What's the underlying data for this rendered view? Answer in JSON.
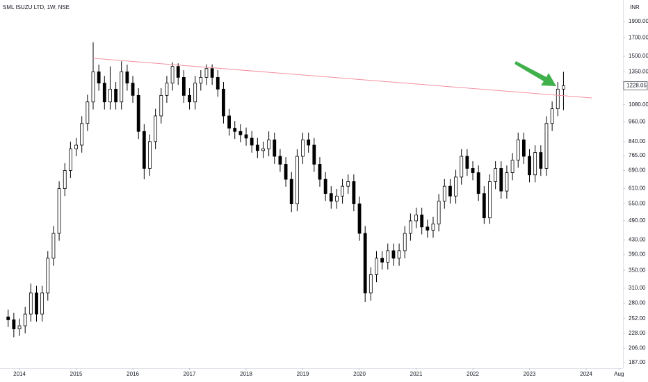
{
  "chart_data": {
    "type": "candlestick",
    "title": "SML ISUZU LTD, 1W, NSE",
    "currency": "INR",
    "log_scale": true,
    "up_color": "#ffffff",
    "down_color": "#000000",
    "wick_color": "#000000",
    "trendline_color": "#f48fa0",
    "xlim": [
      2013.656,
      2024.65
    ],
    "ylim": [
      180,
      2200
    ],
    "xticks": [
      2014,
      2015,
      2016,
      2017,
      2018,
      2019,
      2020,
      2021,
      2022,
      2023,
      2024,
      {
        "value": 2024.58,
        "label": "Aug"
      }
    ],
    "yticks": [
      {
        "value": 1900,
        "label": "1900.00"
      },
      {
        "value": 1700,
        "label": "1700.00"
      },
      {
        "value": 1500,
        "label": "1500.00"
      },
      {
        "value": 1350,
        "label": "1350.00"
      },
      {
        "value": 1080,
        "label": "1080.00"
      },
      {
        "value": 960,
        "label": "960.00"
      },
      {
        "value": 840,
        "label": "840.00"
      },
      {
        "value": 765,
        "label": "765.00"
      },
      {
        "value": 690,
        "label": "690.00"
      },
      {
        "value": 610,
        "label": "610.00"
      },
      {
        "value": 550,
        "label": "550.00"
      },
      {
        "value": 490,
        "label": "490.00"
      },
      {
        "value": 430,
        "label": "430.00"
      },
      {
        "value": 390,
        "label": "390.00"
      },
      {
        "value": 350,
        "label": "350.00"
      },
      {
        "value": 310,
        "label": "310.00"
      },
      {
        "value": 280,
        "label": "280.00"
      },
      {
        "value": 252,
        "label": "252.00"
      },
      {
        "value": 228,
        "label": "228.00"
      },
      {
        "value": 206,
        "label": "206.00"
      },
      {
        "value": 187,
        "label": "187.00"
      }
    ],
    "trendline": {
      "x": [
        2015.3,
        2024.1
      ],
      "y": [
        1480,
        1130
      ]
    },
    "x": [
      2013.8,
      2013.9,
      2014.0,
      2014.1,
      2014.2,
      2014.3,
      2014.4,
      2014.5,
      2014.6,
      2014.7,
      2014.8,
      2014.9,
      2015.0,
      2015.1,
      2015.2,
      2015.3,
      2015.4,
      2015.5,
      2015.6,
      2015.7,
      2015.8,
      2015.9,
      2016.0,
      2016.1,
      2016.2,
      2016.3,
      2016.4,
      2016.5,
      2016.6,
      2016.7,
      2016.8,
      2016.9,
      2017.0,
      2017.1,
      2017.2,
      2017.3,
      2017.4,
      2017.5,
      2017.6,
      2017.7,
      2017.8,
      2017.9,
      2018.0,
      2018.1,
      2018.2,
      2018.3,
      2018.4,
      2018.5,
      2018.6,
      2018.7,
      2018.8,
      2018.9,
      2019.0,
      2019.1,
      2019.2,
      2019.3,
      2019.4,
      2019.5,
      2019.6,
      2019.7,
      2019.8,
      2019.9,
      2020.0,
      2020.1,
      2020.2,
      2020.3,
      2020.4,
      2020.5,
      2020.6,
      2020.7,
      2020.8,
      2020.9,
      2021.0,
      2021.1,
      2021.2,
      2021.3,
      2021.4,
      2021.5,
      2021.6,
      2021.7,
      2021.8,
      2021.9,
      2022.0,
      2022.1,
      2022.2,
      2022.3,
      2022.4,
      2022.5,
      2022.6,
      2022.7,
      2022.8,
      2022.9,
      2023.0,
      2023.1,
      2023.2,
      2023.3,
      2023.4,
      2023.5,
      2023.6
    ],
    "open": [
      255,
      250,
      235,
      240,
      260,
      300,
      260,
      300,
      380,
      450,
      610,
      690,
      800,
      820,
      950,
      1100,
      1350,
      1250,
      1100,
      1200,
      1100,
      1350,
      1250,
      1150,
      900,
      700,
      840,
      1000,
      1150,
      1250,
      1400,
      1300,
      1150,
      1100,
      1250,
      1300,
      1380,
      1300,
      1200,
      1000,
      920,
      900,
      880,
      860,
      820,
      790,
      800,
      850,
      760,
      720,
      650,
      550,
      760,
      850,
      820,
      720,
      650,
      590,
      560,
      580,
      620,
      640,
      550,
      450,
      300,
      340,
      380,
      370,
      400,
      380,
      400,
      450,
      490,
      510,
      470,
      460,
      480,
      560,
      620,
      580,
      660,
      760,
      700,
      680,
      590,
      500,
      640,
      700,
      600,
      680,
      740,
      850,
      760,
      670,
      780,
      700,
      950,
      1050,
      1200
    ],
    "high": [
      268,
      262,
      252,
      273,
      320,
      315,
      315,
      399,
      473,
      641,
      725,
      840,
      861,
      998,
      1155,
      1650,
      1418,
      1313,
      1400,
      1260,
      1450,
      1418,
      1313,
      1208,
      945,
      882,
      1050,
      1208,
      1313,
      1440,
      1430,
      1365,
      1208,
      1313,
      1365,
      1420,
      1420,
      1365,
      1260,
      1050,
      966,
      945,
      924,
      903,
      861,
      840,
      900,
      893,
      798,
      756,
      683,
      798,
      893,
      893,
      861,
      756,
      683,
      620,
      609,
      651,
      672,
      672,
      578,
      473,
      357,
      399,
      399,
      420,
      420,
      420,
      473,
      515,
      536,
      536,
      494,
      504,
      588,
      651,
      651,
      693,
      798,
      798,
      735,
      714,
      620,
      672,
      735,
      735,
      714,
      777,
      893,
      893,
      798,
      819,
      819,
      998,
      1103,
      1260,
      1350
    ],
    "low": [
      238,
      222,
      224,
      228,
      247,
      247,
      247,
      285,
      361,
      428,
      580,
      656,
      760,
      779,
      903,
      1045,
      1188,
      1045,
      1045,
      1045,
      1045,
      1188,
      1093,
      855,
      650,
      665,
      798,
      950,
      1093,
      1188,
      1235,
      1093,
      1045,
      1045,
      1188,
      1235,
      1235,
      1140,
      950,
      874,
      855,
      836,
      817,
      779,
      751,
      751,
      760,
      722,
      684,
      618,
      520,
      523,
      722,
      779,
      684,
      618,
      561,
      532,
      532,
      551,
      589,
      523,
      428,
      282,
      285,
      323,
      352,
      352,
      361,
      361,
      380,
      428,
      466,
      447,
      437,
      437,
      456,
      532,
      551,
      551,
      627,
      665,
      646,
      561,
      480,
      480,
      608,
      570,
      570,
      646,
      703,
      722,
      637,
      637,
      665,
      665,
      903,
      998,
      1040
    ],
    "close": [
      250,
      235,
      240,
      260,
      300,
      260,
      300,
      380,
      450,
      610,
      690,
      800,
      820,
      950,
      1100,
      1350,
      1250,
      1100,
      1200,
      1100,
      1350,
      1250,
      1150,
      900,
      700,
      840,
      1000,
      1150,
      1250,
      1400,
      1300,
      1150,
      1100,
      1250,
      1300,
      1380,
      1300,
      1200,
      1000,
      920,
      900,
      880,
      860,
      820,
      790,
      800,
      850,
      760,
      720,
      650,
      550,
      760,
      850,
      820,
      720,
      650,
      590,
      560,
      580,
      620,
      640,
      550,
      450,
      300,
      340,
      380,
      370,
      400,
      380,
      400,
      450,
      490,
      510,
      470,
      460,
      480,
      560,
      620,
      580,
      660,
      760,
      700,
      680,
      590,
      500,
      640,
      700,
      600,
      680,
      740,
      850,
      760,
      670,
      780,
      700,
      950,
      1050,
      1200,
      1228.05
    ]
  }
}
